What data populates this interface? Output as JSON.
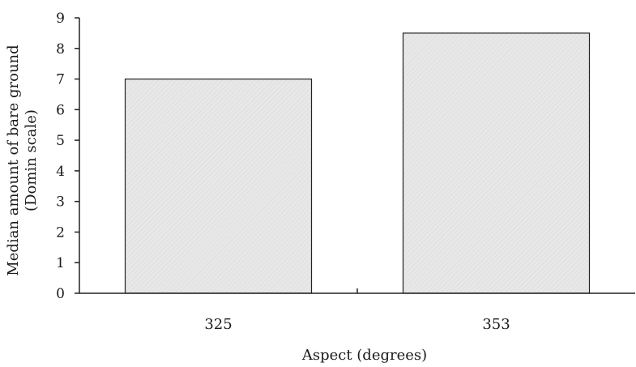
{
  "chart_data": {
    "type": "bar",
    "categories": [
      "325",
      "353"
    ],
    "values": [
      7.0,
      8.5
    ],
    "xlabel": "Aspect (degrees)",
    "ylabel_lines": [
      "Median amount of bare ground",
      "(Domin scale)"
    ],
    "ylim": [
      0,
      9
    ],
    "yticks": [
      "0",
      "1",
      "2",
      "3",
      "4",
      "5",
      "6",
      "7",
      "8",
      "9"
    ],
    "grid": false,
    "bar_fill": "#e6e6e6",
    "bar_stroke": "#222222",
    "axis_color": "#222222"
  }
}
